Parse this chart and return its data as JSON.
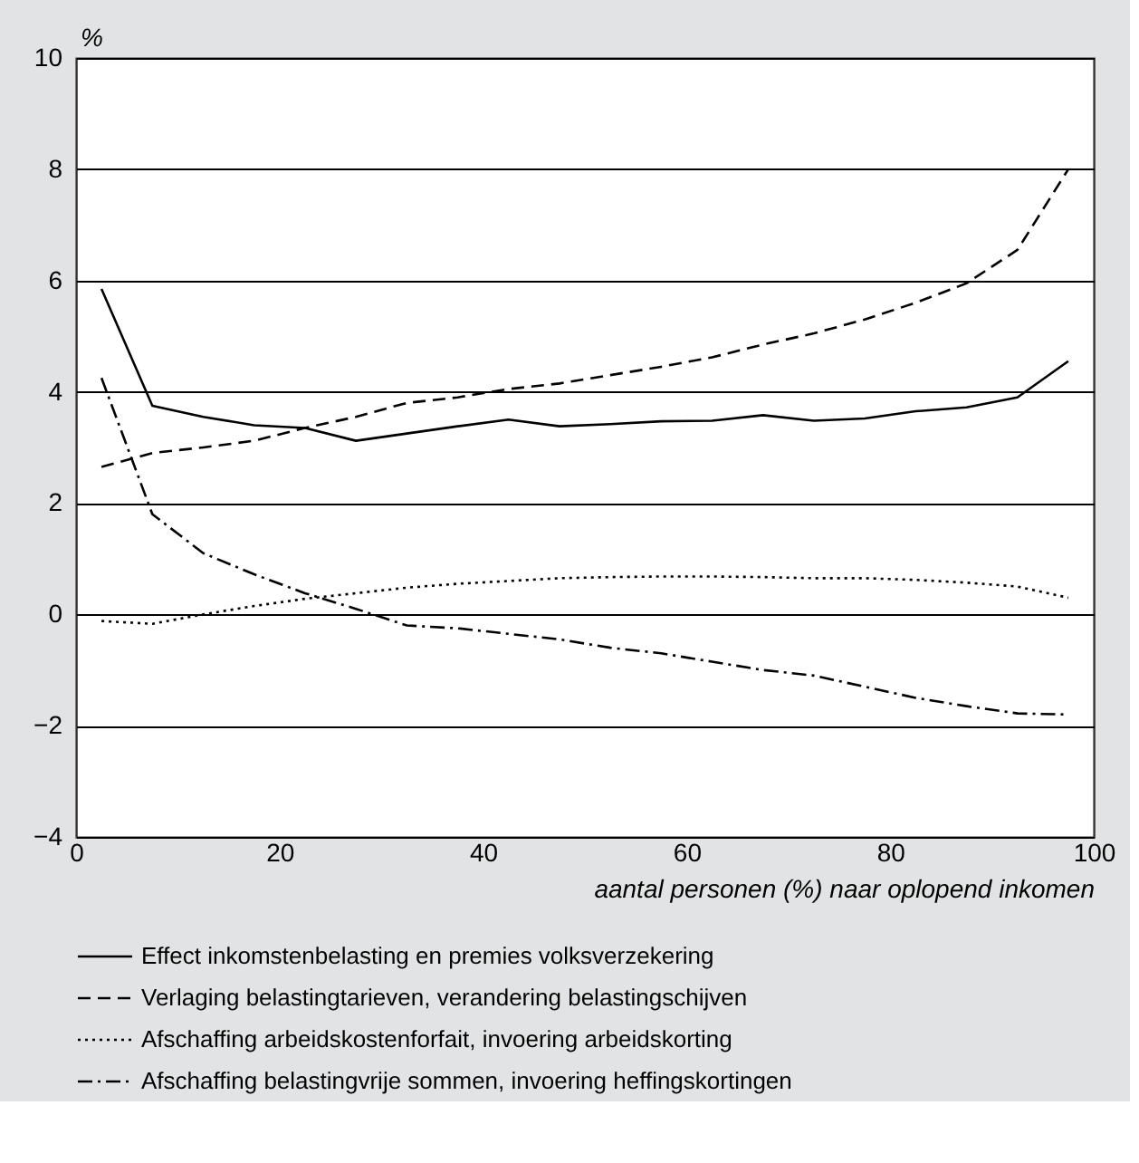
{
  "chart_data": {
    "type": "line",
    "xlabel": "aantal personen (%) naar oplopend inkomen",
    "ylabel": "%",
    "x": [
      2.5,
      7.5,
      12.5,
      17.5,
      22.5,
      27.5,
      32.5,
      37.5,
      42.5,
      47.5,
      52.5,
      57.5,
      62.5,
      67.5,
      72.5,
      77.5,
      82.5,
      87.5,
      92.5,
      97.5
    ],
    "series": [
      {
        "name": "Effect inkomstenbelasting en premies volksverzekering",
        "color": "#000000",
        "line_style": "solid",
        "values": [
          5.85,
          3.75,
          3.55,
          3.4,
          3.35,
          3.12,
          3.25,
          3.38,
          3.5,
          3.38,
          3.42,
          3.47,
          3.48,
          3.58,
          3.48,
          3.52,
          3.65,
          3.72,
          3.9,
          4.55
        ]
      },
      {
        "name": "Verlaging belastingtarieven, verandering belastingschijven",
        "color": "#000000",
        "line_style": "dashed",
        "values": [
          2.65,
          2.9,
          3.0,
          3.12,
          3.35,
          3.55,
          3.8,
          3.9,
          4.05,
          4.15,
          4.3,
          4.45,
          4.62,
          4.85,
          5.05,
          5.3,
          5.6,
          5.95,
          6.55,
          8.0
        ]
      },
      {
        "name": "Afschaffing arbeidskostenforfait, invoering arbeidskorting",
        "color": "#000000",
        "line_style": "dotted",
        "values": [
          -0.12,
          -0.17,
          0.0,
          0.15,
          0.28,
          0.38,
          0.48,
          0.55,
          0.6,
          0.65,
          0.67,
          0.68,
          0.68,
          0.67,
          0.65,
          0.65,
          0.62,
          0.57,
          0.5,
          0.3
        ]
      },
      {
        "name": "Afschaffing belastingvrije sommen, invoering heffingskortingen",
        "color": "#000000",
        "line_style": "dashdot",
        "values": [
          4.25,
          1.8,
          1.1,
          0.72,
          0.38,
          0.1,
          -0.2,
          -0.25,
          -0.35,
          -0.45,
          -0.6,
          -0.7,
          -0.85,
          -1.0,
          -1.1,
          -1.3,
          -1.5,
          -1.65,
          -1.78,
          -1.8
        ]
      }
    ],
    "xlim": [
      0,
      100
    ],
    "xticks": [
      0,
      20,
      40,
      60,
      80,
      100
    ],
    "ylim": [
      -4,
      10
    ],
    "yticks": [
      {
        "value": -4,
        "label": "−4"
      },
      {
        "value": -2,
        "label": "−2"
      },
      0,
      2,
      4,
      6,
      8,
      10
    ],
    "grid": "y",
    "legend": "bottom",
    "marker": "none"
  }
}
